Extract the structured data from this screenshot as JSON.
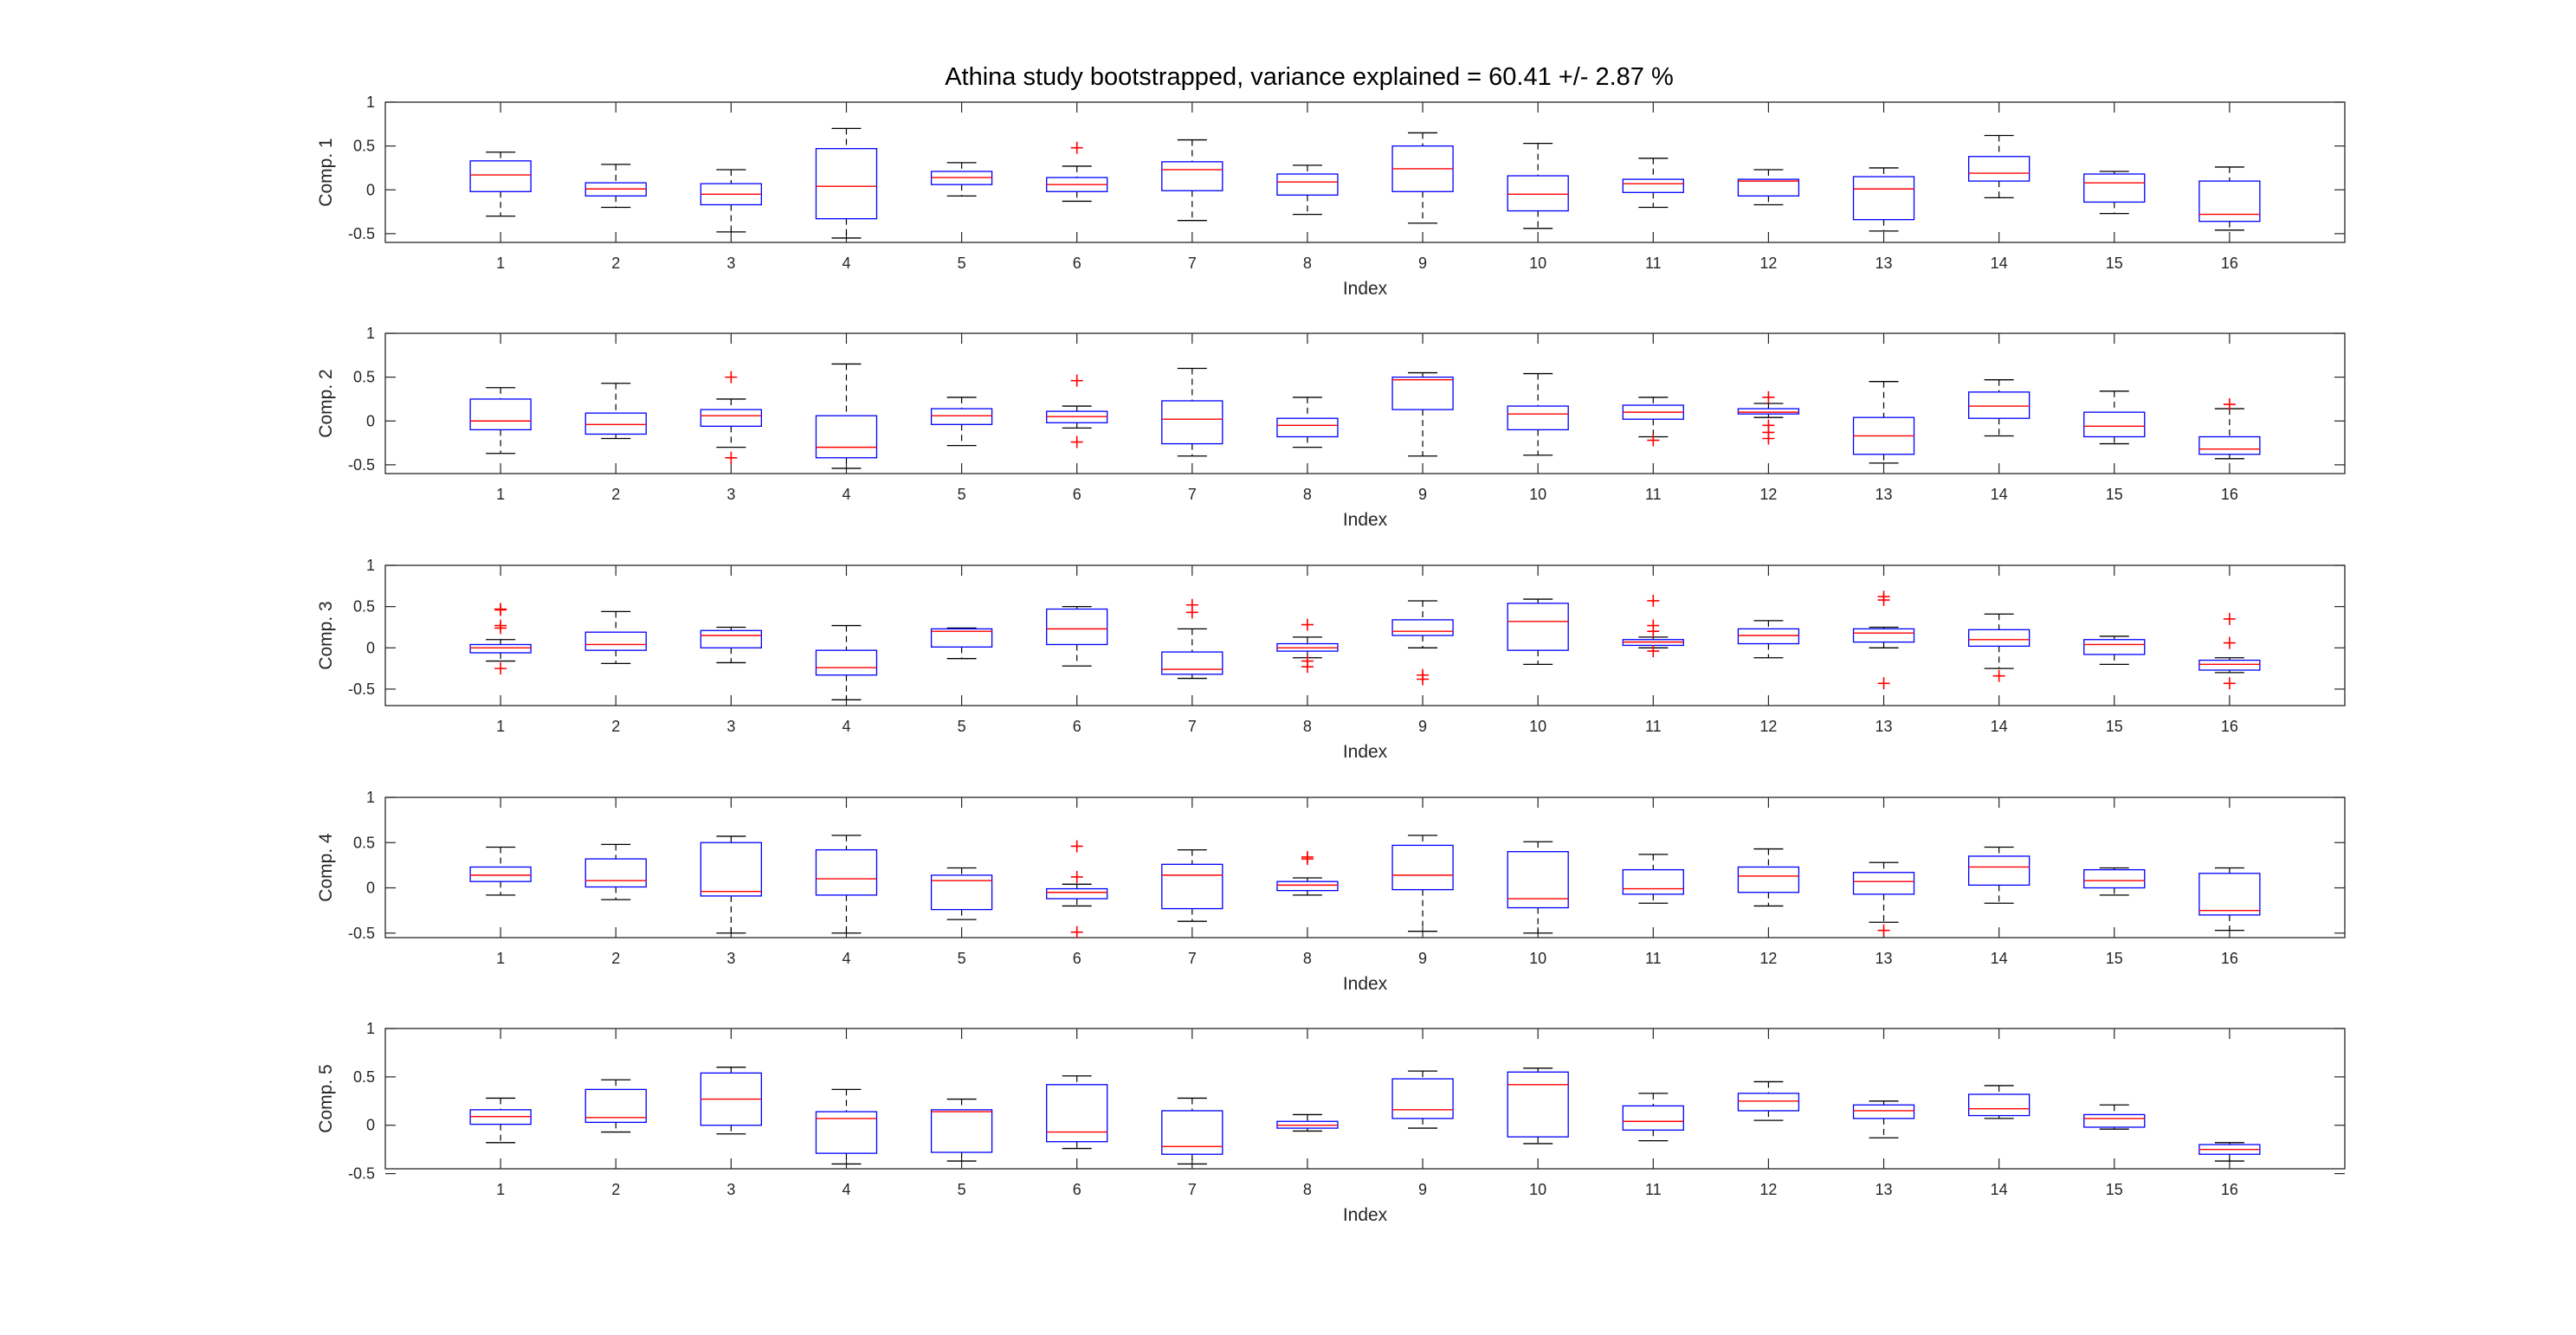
{
  "title": "Athina study bootstrapped, variance explained = 60.41 +/- 2.87 %",
  "chart_data": {
    "type": "boxplot",
    "title": "Athina study bootstrapped, variance explained = 60.41 +/- 2.87 %",
    "xlabel": "Index",
    "categories": [
      "1",
      "2",
      "3",
      "4",
      "5",
      "6",
      "7",
      "8",
      "9",
      "10",
      "11",
      "12",
      "13",
      "14",
      "15",
      "16"
    ],
    "yticks": [
      "-0.5",
      "0",
      "0.5",
      "1"
    ],
    "colors": {
      "box": "#0000ff",
      "median": "#ff0000",
      "whisker": "#000000",
      "outlier": "#ff0000",
      "axis": "#262626"
    },
    "panels": [
      {
        "ylabel": "Comp. 1",
        "ylim": [
          -0.6,
          1
        ],
        "boxes": [
          {
            "lw": -0.3,
            "q1": -0.02,
            "med": 0.17,
            "q3": 0.33,
            "uw": 0.43,
            "out": []
          },
          {
            "lw": -0.2,
            "q1": -0.07,
            "med": 0.01,
            "q3": 0.08,
            "uw": 0.29,
            "out": []
          },
          {
            "lw": -0.48,
            "q1": -0.17,
            "med": -0.05,
            "q3": 0.07,
            "uw": 0.23,
            "out": []
          },
          {
            "lw": -0.55,
            "q1": -0.33,
            "med": 0.04,
            "q3": 0.47,
            "uw": 0.7,
            "out": []
          },
          {
            "lw": -0.07,
            "q1": 0.06,
            "med": 0.14,
            "q3": 0.21,
            "uw": 0.31,
            "out": []
          },
          {
            "lw": -0.13,
            "q1": -0.02,
            "med": 0.06,
            "q3": 0.14,
            "uw": 0.27,
            "out": [
              0.48
            ]
          },
          {
            "lw": -0.35,
            "q1": -0.01,
            "med": 0.23,
            "q3": 0.32,
            "uw": 0.57,
            "out": []
          },
          {
            "lw": -0.28,
            "q1": -0.06,
            "med": 0.09,
            "q3": 0.18,
            "uw": 0.28,
            "out": []
          },
          {
            "lw": -0.38,
            "q1": -0.02,
            "med": 0.24,
            "q3": 0.5,
            "uw": 0.65,
            "out": []
          },
          {
            "lw": -0.44,
            "q1": -0.24,
            "med": -0.05,
            "q3": 0.16,
            "uw": 0.53,
            "out": []
          },
          {
            "lw": -0.2,
            "q1": -0.03,
            "med": 0.07,
            "q3": 0.12,
            "uw": 0.36,
            "out": []
          },
          {
            "lw": -0.17,
            "q1": -0.07,
            "med": 0.1,
            "q3": 0.12,
            "uw": 0.23,
            "out": []
          },
          {
            "lw": -0.47,
            "q1": -0.34,
            "med": 0.01,
            "q3": 0.15,
            "uw": 0.25,
            "out": []
          },
          {
            "lw": -0.09,
            "q1": 0.1,
            "med": 0.19,
            "q3": 0.38,
            "uw": 0.62,
            "out": []
          },
          {
            "lw": -0.27,
            "q1": -0.14,
            "med": 0.08,
            "q3": 0.18,
            "uw": 0.21,
            "out": []
          },
          {
            "lw": -0.46,
            "q1": -0.36,
            "med": -0.28,
            "q3": 0.1,
            "uw": 0.26,
            "out": []
          }
        ]
      },
      {
        "ylabel": "Comp. 2",
        "ylim": [
          -0.6,
          1
        ],
        "boxes": [
          {
            "lw": -0.37,
            "q1": -0.1,
            "med": 0.0,
            "q3": 0.25,
            "uw": 0.38,
            "out": []
          },
          {
            "lw": -0.2,
            "q1": -0.15,
            "med": -0.04,
            "q3": 0.09,
            "uw": 0.43,
            "out": []
          },
          {
            "lw": -0.3,
            "q1": -0.06,
            "med": 0.06,
            "q3": 0.13,
            "uw": 0.25,
            "out": [
              0.5,
              -0.42
            ]
          },
          {
            "lw": -0.54,
            "q1": -0.42,
            "med": -0.3,
            "q3": 0.06,
            "uw": 0.65,
            "out": []
          },
          {
            "lw": -0.28,
            "q1": -0.04,
            "med": 0.06,
            "q3": 0.14,
            "uw": 0.27,
            "out": []
          },
          {
            "lw": -0.08,
            "q1": -0.02,
            "med": 0.05,
            "q3": 0.11,
            "uw": 0.17,
            "out": [
              0.46,
              -0.24
            ]
          },
          {
            "lw": -0.4,
            "q1": -0.26,
            "med": 0.02,
            "q3": 0.23,
            "uw": 0.6,
            "out": []
          },
          {
            "lw": -0.3,
            "q1": -0.18,
            "med": -0.05,
            "q3": 0.03,
            "uw": 0.27,
            "out": []
          },
          {
            "lw": -0.4,
            "q1": 0.13,
            "med": 0.47,
            "q3": 0.5,
            "uw": 0.55,
            "out": []
          },
          {
            "lw": -0.39,
            "q1": -0.1,
            "med": 0.08,
            "q3": 0.17,
            "uw": 0.54,
            "out": []
          },
          {
            "lw": -0.18,
            "q1": 0.02,
            "med": 0.1,
            "q3": 0.18,
            "uw": 0.27,
            "out": [
              -0.22
            ]
          },
          {
            "lw": 0.04,
            "q1": 0.08,
            "med": 0.1,
            "q3": 0.14,
            "uw": 0.2,
            "out": [
              0.27,
              -0.05,
              -0.13,
              -0.2
            ]
          },
          {
            "lw": -0.48,
            "q1": -0.38,
            "med": -0.17,
            "q3": 0.04,
            "uw": 0.45,
            "out": []
          },
          {
            "lw": -0.17,
            "q1": 0.03,
            "med": 0.17,
            "q3": 0.33,
            "uw": 0.47,
            "out": []
          },
          {
            "lw": -0.26,
            "q1": -0.18,
            "med": -0.06,
            "q3": 0.1,
            "uw": 0.34,
            "out": []
          },
          {
            "lw": -0.43,
            "q1": -0.38,
            "med": -0.32,
            "q3": -0.18,
            "uw": 0.14,
            "out": [
              0.19
            ]
          }
        ]
      },
      {
        "ylabel": "Comp. 3",
        "ylim": [
          -0.7,
          1
        ],
        "boxes": [
          {
            "lw": -0.16,
            "q1": -0.06,
            "med": 0.0,
            "q3": 0.04,
            "uw": 0.1,
            "out": [
              0.47,
              0.46,
              0.27,
              0.24,
              -0.25
            ]
          },
          {
            "lw": -0.19,
            "q1": -0.03,
            "med": 0.04,
            "q3": 0.19,
            "uw": 0.44,
            "out": []
          },
          {
            "lw": -0.18,
            "q1": 0.0,
            "med": 0.15,
            "q3": 0.21,
            "uw": 0.25,
            "out": []
          },
          {
            "lw": -0.63,
            "q1": -0.33,
            "med": -0.24,
            "q3": -0.03,
            "uw": 0.27,
            "out": []
          },
          {
            "lw": -0.13,
            "q1": 0.01,
            "med": 0.2,
            "q3": 0.23,
            "uw": 0.24,
            "out": []
          },
          {
            "lw": -0.22,
            "q1": 0.04,
            "med": 0.23,
            "q3": 0.47,
            "uw": 0.5,
            "out": []
          },
          {
            "lw": -0.37,
            "q1": -0.32,
            "med": -0.26,
            "q3": -0.05,
            "uw": 0.23,
            "out": [
              0.52,
              0.43
            ]
          },
          {
            "lw": -0.12,
            "q1": -0.04,
            "med": 0.0,
            "q3": 0.05,
            "uw": 0.13,
            "out": [
              0.28,
              -0.16,
              -0.23
            ]
          },
          {
            "lw": 0.0,
            "q1": 0.15,
            "med": 0.2,
            "q3": 0.34,
            "uw": 0.57,
            "out": [
              -0.33,
              -0.38
            ]
          },
          {
            "lw": -0.2,
            "q1": -0.03,
            "med": 0.32,
            "q3": 0.54,
            "uw": 0.59,
            "out": []
          },
          {
            "lw": 0.0,
            "q1": 0.03,
            "med": 0.07,
            "q3": 0.1,
            "uw": 0.13,
            "out": [
              0.57,
              0.27,
              0.2,
              -0.04
            ]
          },
          {
            "lw": -0.12,
            "q1": 0.05,
            "med": 0.15,
            "q3": 0.23,
            "uw": 0.33,
            "out": []
          },
          {
            "lw": 0.0,
            "q1": 0.07,
            "med": 0.18,
            "q3": 0.23,
            "uw": 0.25,
            "out": [
              0.62,
              0.58,
              -0.43
            ]
          },
          {
            "lw": -0.25,
            "q1": 0.02,
            "med": 0.1,
            "q3": 0.22,
            "uw": 0.41,
            "out": [
              -0.34
            ]
          },
          {
            "lw": -0.2,
            "q1": -0.08,
            "med": 0.04,
            "q3": 0.1,
            "uw": 0.14,
            "out": []
          },
          {
            "lw": -0.3,
            "q1": -0.27,
            "med": -0.2,
            "q3": -0.15,
            "uw": -0.12,
            "out": [
              0.35,
              0.06,
              -0.43
            ]
          }
        ]
      },
      {
        "ylabel": "Comp. 4",
        "ylim": [
          -0.55,
          1
        ],
        "boxes": [
          {
            "lw": -0.08,
            "q1": 0.07,
            "med": 0.14,
            "q3": 0.23,
            "uw": 0.45,
            "out": []
          },
          {
            "lw": -0.13,
            "q1": 0.01,
            "med": 0.08,
            "q3": 0.32,
            "uw": 0.48,
            "out": []
          },
          {
            "lw": -0.5,
            "q1": -0.09,
            "med": -0.04,
            "q3": 0.5,
            "uw": 0.57,
            "out": []
          },
          {
            "lw": -0.5,
            "q1": -0.08,
            "med": 0.1,
            "q3": 0.42,
            "uw": 0.58,
            "out": []
          },
          {
            "lw": -0.35,
            "q1": -0.24,
            "med": 0.08,
            "q3": 0.14,
            "uw": 0.22,
            "out": []
          },
          {
            "lw": -0.2,
            "q1": -0.12,
            "med": -0.05,
            "q3": -0.01,
            "uw": 0.04,
            "out": [
              0.46,
              0.12,
              -0.49
            ]
          },
          {
            "lw": -0.37,
            "q1": -0.23,
            "med": 0.14,
            "q3": 0.26,
            "uw": 0.42,
            "out": []
          },
          {
            "lw": -0.08,
            "q1": -0.03,
            "med": 0.03,
            "q3": 0.07,
            "uw": 0.11,
            "out": [
              0.34,
              0.32
            ]
          },
          {
            "lw": -0.48,
            "q1": -0.02,
            "med": 0.14,
            "q3": 0.47,
            "uw": 0.58,
            "out": []
          },
          {
            "lw": -0.5,
            "q1": -0.22,
            "med": -0.12,
            "q3": 0.4,
            "uw": 0.51,
            "out": []
          },
          {
            "lw": -0.17,
            "q1": -0.07,
            "med": -0.01,
            "q3": 0.2,
            "uw": 0.37,
            "out": []
          },
          {
            "lw": -0.2,
            "q1": -0.05,
            "med": 0.13,
            "q3": 0.23,
            "uw": 0.43,
            "out": []
          },
          {
            "lw": -0.38,
            "q1": -0.07,
            "med": 0.07,
            "q3": 0.17,
            "uw": 0.28,
            "out": [
              -0.47
            ]
          },
          {
            "lw": -0.17,
            "q1": 0.03,
            "med": 0.23,
            "q3": 0.35,
            "uw": 0.45,
            "out": []
          },
          {
            "lw": -0.08,
            "q1": 0.0,
            "med": 0.08,
            "q3": 0.2,
            "uw": 0.22,
            "out": []
          },
          {
            "lw": -0.47,
            "q1": -0.3,
            "med": -0.25,
            "q3": 0.16,
            "uw": 0.22,
            "out": []
          }
        ]
      },
      {
        "ylabel": "Comp. 5",
        "ylim": [
          -0.45,
          1
        ],
        "boxes": [
          {
            "lw": -0.18,
            "q1": 0.01,
            "med": 0.09,
            "q3": 0.16,
            "uw": 0.28,
            "out": []
          },
          {
            "lw": -0.07,
            "q1": 0.03,
            "med": 0.08,
            "q3": 0.37,
            "uw": 0.47,
            "out": []
          },
          {
            "lw": -0.09,
            "q1": 0.0,
            "med": 0.27,
            "q3": 0.54,
            "uw": 0.6,
            "out": []
          },
          {
            "lw": -0.4,
            "q1": -0.29,
            "med": 0.07,
            "q3": 0.14,
            "uw": 0.37,
            "out": []
          },
          {
            "lw": -0.37,
            "q1": -0.28,
            "med": 0.14,
            "q3": 0.16,
            "uw": 0.27,
            "out": []
          },
          {
            "lw": -0.24,
            "q1": -0.17,
            "med": -0.07,
            "q3": 0.42,
            "uw": 0.51,
            "out": []
          },
          {
            "lw": -0.4,
            "q1": -0.3,
            "med": -0.22,
            "q3": 0.15,
            "uw": 0.28,
            "out": []
          },
          {
            "lw": -0.06,
            "q1": -0.03,
            "med": 0.0,
            "q3": 0.04,
            "uw": 0.11,
            "out": []
          },
          {
            "lw": -0.03,
            "q1": 0.07,
            "med": 0.16,
            "q3": 0.48,
            "uw": 0.56,
            "out": []
          },
          {
            "lw": -0.19,
            "q1": -0.12,
            "med": 0.42,
            "q3": 0.55,
            "uw": 0.59,
            "out": []
          },
          {
            "lw": -0.16,
            "q1": -0.05,
            "med": 0.04,
            "q3": 0.2,
            "uw": 0.33,
            "out": []
          },
          {
            "lw": 0.05,
            "q1": 0.15,
            "med": 0.25,
            "q3": 0.33,
            "uw": 0.45,
            "out": []
          },
          {
            "lw": -0.13,
            "q1": 0.07,
            "med": 0.15,
            "q3": 0.21,
            "uw": 0.25,
            "out": []
          },
          {
            "lw": 0.07,
            "q1": 0.1,
            "med": 0.17,
            "q3": 0.32,
            "uw": 0.41,
            "out": []
          },
          {
            "lw": -0.04,
            "q1": -0.02,
            "med": 0.07,
            "q3": 0.11,
            "uw": 0.21,
            "out": []
          },
          {
            "lw": -0.37,
            "q1": -0.3,
            "med": -0.25,
            "q3": -0.2,
            "uw": -0.18,
            "out": []
          }
        ]
      }
    ]
  }
}
